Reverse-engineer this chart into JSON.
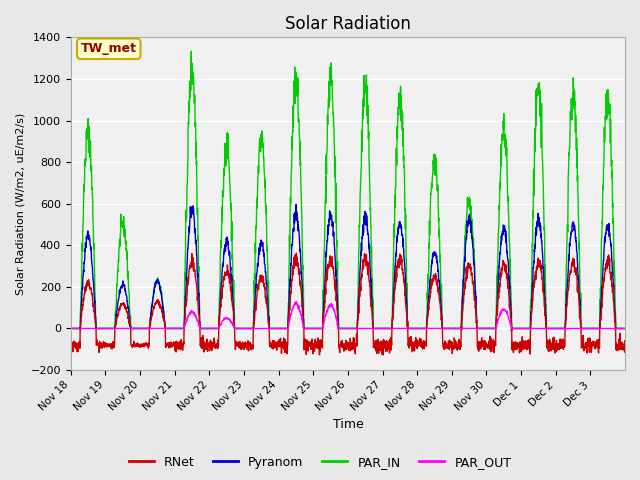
{
  "title": "Solar Radiation",
  "ylabel": "Solar Radiation (W/m2, uE/m2/s)",
  "xlabel": "Time",
  "ylim": [
    -200,
    1400
  ],
  "yticks": [
    -200,
    0,
    200,
    400,
    600,
    800,
    1000,
    1200,
    1400
  ],
  "background_color": "#e8e8e8",
  "plot_bg_color": "#f0f0f0",
  "annotation_text": "TW_met",
  "annotation_bg": "#ffffcc",
  "annotation_border": "#ccaa00",
  "series": {
    "RNet": {
      "color": "#cc0000",
      "lw": 1.0
    },
    "Pyranom": {
      "color": "#0000cc",
      "lw": 1.0
    },
    "PAR_IN": {
      "color": "#00cc00",
      "lw": 1.0
    },
    "PAR_OUT": {
      "color": "#ff00ff",
      "lw": 1.0
    }
  },
  "n_days": 16,
  "xticklabels": [
    "Nov 18",
    "Nov 19",
    "Nov 20",
    "Nov 21",
    "Nov 22",
    "Nov 23",
    "Nov 24",
    "Nov 25",
    "Nov 26",
    "Nov 27",
    "Nov 28",
    "Nov 29",
    "Nov 30",
    "Dec 1",
    "Dec 2",
    "Dec 3"
  ],
  "xtick_positions": [
    0,
    1,
    2,
    3,
    4,
    5,
    6,
    7,
    8,
    9,
    10,
    11,
    12,
    13,
    14,
    15
  ],
  "grid_color": "#ffffff",
  "grid_lw": 1.0,
  "par_in_peaks": [
    950,
    500,
    230,
    1250,
    880,
    920,
    1200,
    1190,
    1150,
    1100,
    800,
    600,
    960,
    1150,
    1140,
    1110
  ],
  "pyranom_peaks": [
    450,
    210,
    230,
    570,
    420,
    410,
    550,
    540,
    530,
    500,
    370,
    520,
    480,
    520,
    500,
    490
  ],
  "rnet_peaks": [
    220,
    120,
    130,
    320,
    280,
    250,
    330,
    330,
    340,
    330,
    250,
    300,
    310,
    320,
    320,
    320
  ],
  "par_out_peaks": [
    0,
    0,
    0,
    80,
    50,
    0,
    120,
    110,
    0,
    0,
    0,
    0,
    90,
    0,
    0,
    0
  ]
}
